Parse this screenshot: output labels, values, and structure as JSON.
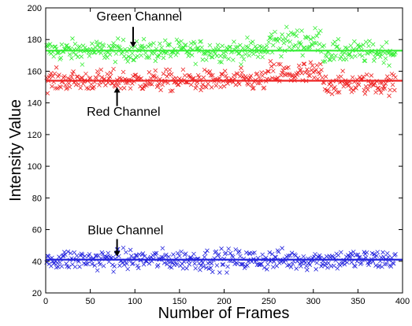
{
  "chart_data": {
    "type": "scatter",
    "title": "",
    "xlabel": "Number of Frames",
    "ylabel": "Intensity Value",
    "xlim": [
      0,
      400
    ],
    "ylim": [
      20,
      200
    ],
    "xticks": [
      0,
      50,
      100,
      150,
      200,
      250,
      300,
      350,
      400
    ],
    "yticks": [
      20,
      40,
      60,
      80,
      100,
      120,
      140,
      160,
      180,
      200
    ],
    "grid": false,
    "marker": "x",
    "series": [
      {
        "name": "Green Channel",
        "color": "#33ee33",
        "mean_line": 173,
        "segments": [
          {
            "from": 1,
            "to": 249,
            "base": 173,
            "noise": 3.6
          },
          {
            "from": 250,
            "to": 310,
            "base": 179,
            "noise": 4.5
          },
          {
            "from": 311,
            "to": 392,
            "base": 172,
            "noise": 3.6
          }
        ]
      },
      {
        "name": "Red Channel",
        "color": "#ee2222",
        "mean_line": 154,
        "segments": [
          {
            "from": 1,
            "to": 249,
            "base": 154,
            "noise": 3.5
          },
          {
            "from": 250,
            "to": 310,
            "base": 158,
            "noise": 4.5
          },
          {
            "from": 311,
            "to": 392,
            "base": 152,
            "noise": 3.5
          }
        ]
      },
      {
        "name": "Blue Channel",
        "color": "#2222dd",
        "mean_line": 41,
        "segments": [
          {
            "from": 1,
            "to": 392,
            "base": 41,
            "noise": 3.5
          }
        ]
      }
    ],
    "annotations": [
      {
        "text": "Green Channel",
        "arrow_x": 98,
        "arrow_from_y": 188,
        "arrow_to_y": 175,
        "text_y": 192,
        "text_x": 57
      },
      {
        "text": "Red Channel",
        "arrow_x": 80,
        "arrow_from_y": 138,
        "arrow_to_y": 150,
        "text_y": 132,
        "text_x": 46
      },
      {
        "text": "Blue Channel",
        "arrow_x": 80,
        "arrow_from_y": 54,
        "arrow_to_y": 43,
        "text_y": 57,
        "text_x": 47
      }
    ]
  }
}
